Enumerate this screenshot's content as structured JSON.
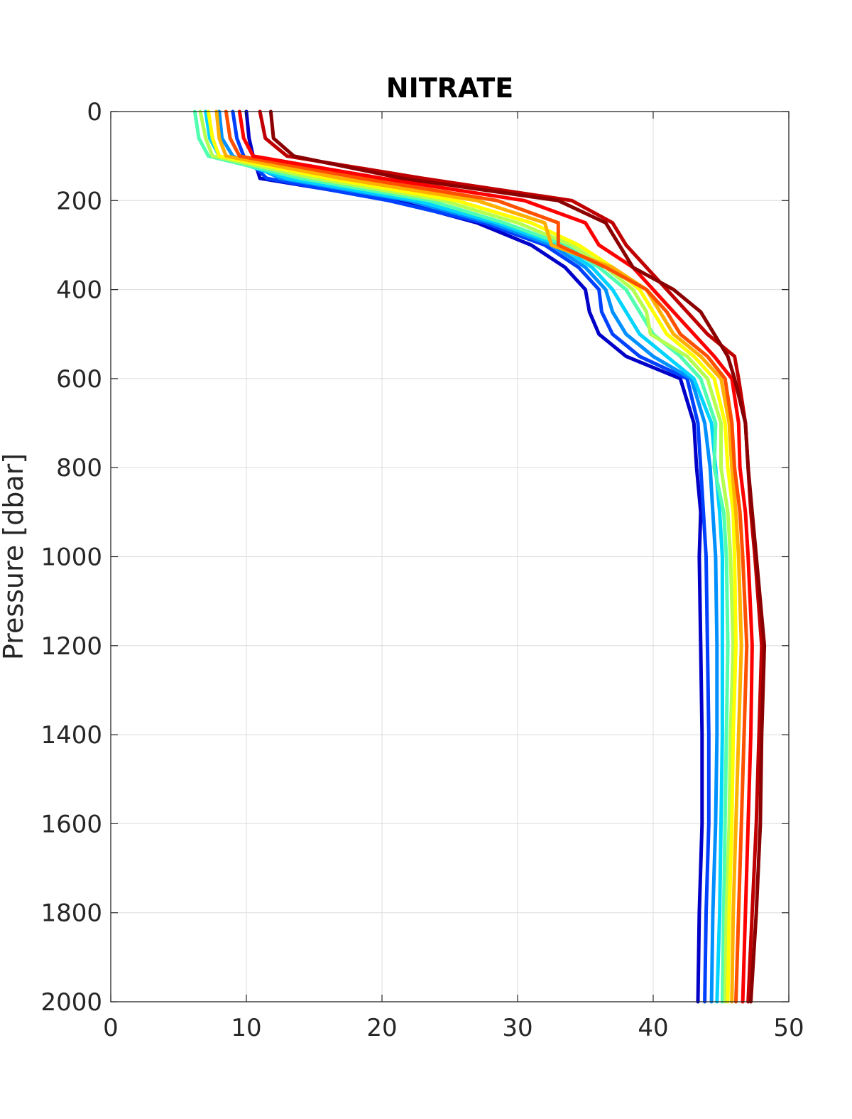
{
  "chart_data": {
    "type": "line",
    "title": "NITRATE",
    "xlabel": "",
    "ylabel": "Pressure [dbar]",
    "xlim": [
      0,
      50
    ],
    "ylim": [
      0,
      2000
    ],
    "y_reversed": true,
    "grid": true,
    "legend": "none",
    "x_ticks": [
      "0",
      "10",
      "20",
      "30",
      "40",
      "50"
    ],
    "y_ticks": [
      "0",
      "200",
      "400",
      "600",
      "800",
      "1000",
      "1200",
      "1400",
      "1600",
      "1800",
      "2000"
    ],
    "colormap": [
      "#0000c8",
      "#0040ff",
      "#0090ff",
      "#00d4ff",
      "#50ffb0",
      "#b4ff50",
      "#ffff00",
      "#ffb000",
      "#ff5000",
      "#ff0000",
      "#c00000",
      "#8b0000"
    ],
    "pressure": [
      0,
      60,
      100,
      150,
      200,
      250,
      300,
      350,
      400,
      450,
      500,
      550,
      600,
      700,
      800,
      900,
      1000,
      1200,
      1400,
      1600,
      1800,
      2000
    ],
    "series": [
      {
        "color": "#0000c8",
        "values": [
          10.0,
          10.2,
          10.5,
          11.0,
          21.0,
          27.0,
          31.0,
          33.5,
          35.0,
          35.3,
          36.0,
          38.0,
          42.0,
          43.0,
          43.2,
          43.5,
          43.4,
          43.5,
          43.6,
          43.6,
          43.4,
          43.3
        ]
      },
      {
        "color": "#0040ff",
        "values": [
          9.0,
          9.3,
          9.8,
          11.5,
          20.5,
          27.5,
          32.0,
          34.5,
          36.0,
          36.2,
          37.0,
          39.0,
          42.5,
          43.3,
          43.5,
          43.7,
          43.9,
          44.0,
          44.1,
          44.1,
          43.9,
          43.8
        ]
      },
      {
        "color": "#0090ff",
        "values": [
          8.0,
          8.2,
          9.0,
          12.5,
          22.0,
          28.0,
          32.5,
          35.0,
          36.5,
          37.0,
          38.0,
          40.0,
          42.8,
          43.8,
          44.2,
          44.4,
          44.6,
          44.7,
          44.7,
          44.6,
          44.4,
          44.3
        ]
      },
      {
        "color": "#00d4ff",
        "values": [
          7.0,
          7.3,
          8.0,
          13.0,
          22.5,
          28.5,
          33.0,
          35.5,
          37.0,
          38.0,
          39.0,
          41.0,
          43.0,
          44.3,
          44.6,
          44.9,
          45.1,
          45.1,
          45.1,
          45.0,
          44.9,
          44.7
        ]
      },
      {
        "color": "#50ffb0",
        "values": [
          6.2,
          6.5,
          7.2,
          14.0,
          23.5,
          29.0,
          33.5,
          36.0,
          38.0,
          39.0,
          40.0,
          42.0,
          43.5,
          44.6,
          44.5,
          45.2,
          45.4,
          45.5,
          45.4,
          45.3,
          45.2,
          45.1
        ]
      },
      {
        "color": "#b4ff50",
        "values": [
          6.6,
          7.0,
          7.5,
          15.0,
          24.5,
          30.0,
          34.0,
          36.5,
          38.5,
          39.5,
          39.8,
          42.5,
          44.0,
          45.0,
          45.0,
          45.5,
          45.7,
          45.9,
          45.7,
          45.6,
          45.4,
          45.3
        ]
      },
      {
        "color": "#ffff00",
        "values": [
          7.2,
          7.5,
          8.0,
          16.0,
          25.5,
          31.0,
          34.5,
          37.0,
          39.0,
          40.0,
          41.0,
          43.0,
          44.5,
          45.3,
          45.5,
          45.9,
          46.0,
          46.1,
          45.9,
          45.8,
          45.6,
          45.5
        ]
      },
      {
        "color": "#ffb000",
        "values": [
          7.8,
          8.0,
          8.5,
          17.0,
          27.0,
          32.0,
          32.5,
          37.0,
          39.5,
          40.5,
          41.5,
          43.5,
          45.0,
          45.6,
          45.8,
          46.1,
          46.3,
          46.5,
          46.3,
          46.1,
          45.9,
          45.8
        ]
      },
      {
        "color": "#ff5000",
        "values": [
          8.5,
          8.8,
          9.5,
          18.5,
          28.5,
          33.0,
          33.0,
          36.5,
          39.5,
          41.0,
          42.0,
          44.0,
          45.3,
          45.8,
          46.0,
          46.4,
          46.6,
          46.9,
          46.7,
          46.5,
          46.3,
          46.1
        ]
      },
      {
        "color": "#ff0000",
        "values": [
          9.5,
          9.8,
          10.5,
          20.0,
          30.5,
          35.0,
          36.0,
          38.5,
          40.0,
          41.5,
          43.0,
          44.5,
          45.8,
          46.3,
          46.4,
          46.8,
          47.0,
          47.3,
          47.2,
          47.0,
          46.8,
          46.6
        ]
      },
      {
        "color": "#c00000",
        "values": [
          11.0,
          11.4,
          13.0,
          23.0,
          34.0,
          37.0,
          38.0,
          39.5,
          41.0,
          42.5,
          44.0,
          46.0,
          46.3,
          46.8,
          47.0,
          47.2,
          47.5,
          48.0,
          47.8,
          47.6,
          47.3,
          47.0
        ]
      },
      {
        "color": "#8b0000",
        "values": [
          11.8,
          12.0,
          13.5,
          21.5,
          33.0,
          36.5,
          37.5,
          38.5,
          41.5,
          43.5,
          44.5,
          45.5,
          46.0,
          46.8,
          47.0,
          47.3,
          47.6,
          48.2,
          48.0,
          47.9,
          47.6,
          47.2
        ]
      }
    ]
  }
}
